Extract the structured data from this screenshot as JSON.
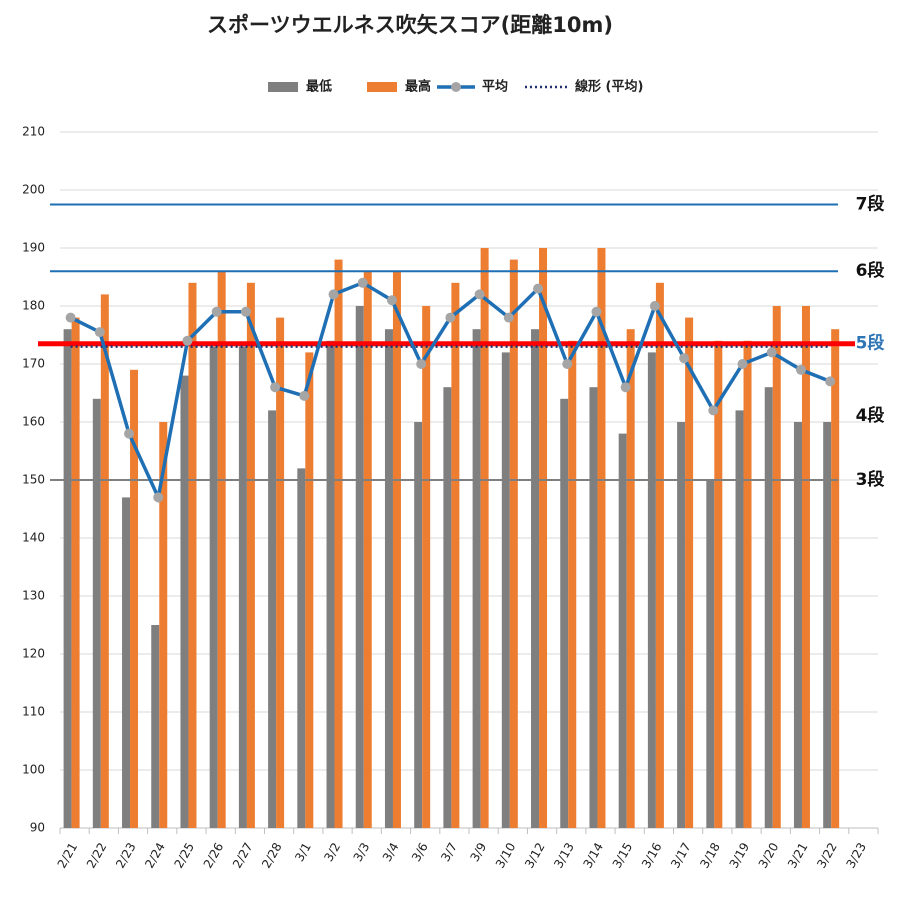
{
  "chart_data": {
    "type": "bar_line",
    "title": "スポーツウエルネス吹矢スコア(距離10m)",
    "categories": [
      "2/21",
      "2/22",
      "2/23",
      "2/24",
      "2/25",
      "2/26",
      "2/27",
      "2/28",
      "3/1",
      "3/2",
      "3/3",
      "3/4",
      "3/6",
      "3/7",
      "3/9",
      "3/10",
      "3/12",
      "3/13",
      "3/14",
      "3/15",
      "3/16",
      "3/17",
      "3/18",
      "3/19",
      "3/20",
      "3/21",
      "3/22",
      "3/23"
    ],
    "series": [
      {
        "name": "最低",
        "kind": "bar",
        "color": "#7f7f7f",
        "values": [
          176,
          164,
          147,
          125,
          168,
          173,
          173,
          162,
          152,
          174,
          180,
          176,
          160,
          166,
          176,
          172,
          176,
          164,
          166,
          158,
          172,
          160,
          150,
          162,
          166,
          160,
          160,
          null
        ]
      },
      {
        "name": "最高",
        "kind": "bar",
        "color": "#ed7d31",
        "values": [
          178,
          182,
          169,
          160,
          184,
          186,
          184,
          178,
          172,
          188,
          186,
          186,
          180,
          184,
          190,
          188,
          190,
          174,
          190,
          176,
          184,
          178,
          174,
          174,
          180,
          180,
          176,
          null
        ]
      },
      {
        "name": "平均",
        "kind": "line",
        "color": "#1f6fb5",
        "marker_color": "#a5a5a5",
        "values": [
          178,
          175.5,
          158,
          147,
          174,
          179,
          179,
          166,
          164.5,
          182,
          184,
          181,
          170,
          178,
          182,
          178,
          183,
          170,
          179,
          166,
          180,
          171,
          162,
          170,
          172,
          169,
          167,
          null
        ]
      },
      {
        "name": "線形 (平均)",
        "kind": "trend",
        "color": "#1f2f6f",
        "values": [
          173,
          173,
          173,
          173,
          173,
          173,
          173,
          173,
          173,
          173,
          173,
          173,
          173,
          173,
          173,
          173,
          173,
          173,
          173,
          173,
          173,
          173,
          173,
          173,
          173,
          173,
          173,
          null
        ]
      }
    ],
    "reference_lines": [
      {
        "label": "7段",
        "value": 197.5,
        "color": "#1f6fb5",
        "label_color": "#111111",
        "line": true
      },
      {
        "label": "6段",
        "value": 186,
        "color": "#1f6fb5",
        "label_color": "#111111",
        "line": true
      },
      {
        "label": "5段",
        "value": 173.5,
        "color": "#ff0000",
        "label_color": "#2e75b6",
        "line": true
      },
      {
        "label": "4段",
        "value": 161,
        "color": "#111111",
        "label_color": "#111111",
        "line": false
      },
      {
        "label": "3段",
        "value": 150,
        "color": "#7f7f7f",
        "label_color": "#111111",
        "line": true
      }
    ],
    "ylim": [
      90,
      210
    ],
    "yticks": [
      90,
      100,
      110,
      120,
      130,
      140,
      150,
      160,
      170,
      180,
      190,
      200,
      210
    ],
    "grid": true
  }
}
